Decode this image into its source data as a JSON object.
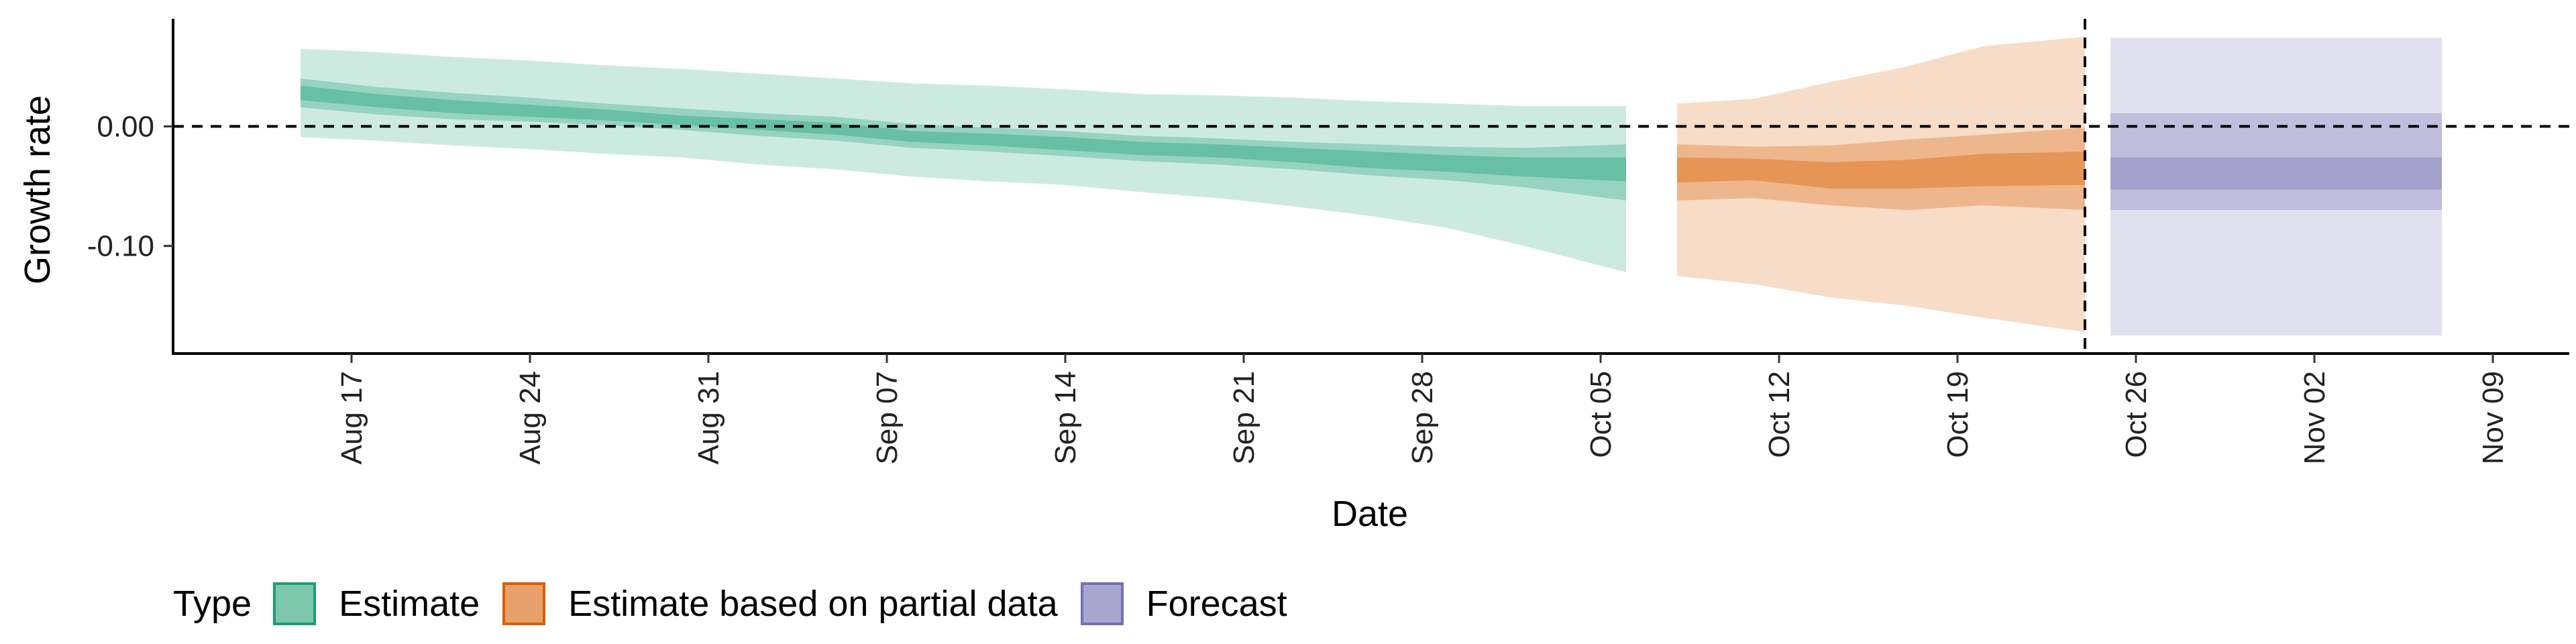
{
  "chart_data": {
    "type": "area",
    "ylabel": "Growth rate",
    "xlabel": "Date",
    "ylim": [
      -0.19,
      0.09
    ],
    "yticks": [
      {
        "value": 0.0,
        "label": "0.00"
      },
      {
        "value": -0.1,
        "label": "-0.10"
      }
    ],
    "xlim": [
      "2020-08-10",
      "2020-11-12"
    ],
    "xticks": [
      {
        "date": "2020-08-17",
        "label": "Aug 17"
      },
      {
        "date": "2020-08-24",
        "label": "Aug 24"
      },
      {
        "date": "2020-08-31",
        "label": "Aug 31"
      },
      {
        "date": "2020-09-07",
        "label": "Sep 07"
      },
      {
        "date": "2020-09-14",
        "label": "Sep 14"
      },
      {
        "date": "2020-09-21",
        "label": "Sep 21"
      },
      {
        "date": "2020-09-28",
        "label": "Sep 28"
      },
      {
        "date": "2020-10-05",
        "label": "Oct 05"
      },
      {
        "date": "2020-10-12",
        "label": "Oct 12"
      },
      {
        "date": "2020-10-19",
        "label": "Oct 19"
      },
      {
        "date": "2020-10-26",
        "label": "Oct 26"
      },
      {
        "date": "2020-11-02",
        "label": "Nov 02"
      },
      {
        "date": "2020-11-09",
        "label": "Nov 09"
      }
    ],
    "reference_lines": [
      {
        "axis": "y",
        "value": 0.0,
        "style": "dashed"
      },
      {
        "axis": "x",
        "value": "2020-10-24",
        "style": "dashed"
      }
    ],
    "legend": {
      "title": "Type",
      "position": "bottom-left",
      "items": [
        {
          "label": "Estimate",
          "fill": "#7dc8ad",
          "border": "#1b9e77"
        },
        {
          "label": "Estimate based on partial data",
          "fill": "#e8a06a",
          "border": "#d95f02"
        },
        {
          "label": "Forecast",
          "fill": "#a9a7d0",
          "border": "#7570b3"
        }
      ]
    },
    "series": [
      {
        "name": "Estimate",
        "color": "#1b9e77",
        "points": [
          {
            "date": "2020-08-15",
            "lo90": -0.009,
            "lo50": 0.016,
            "lo20": 0.022,
            "hi20": 0.034,
            "hi50": 0.04,
            "hi90": 0.065
          },
          {
            "date": "2020-08-18",
            "lo90": -0.012,
            "lo50": 0.01,
            "lo20": 0.016,
            "hi20": 0.027,
            "hi50": 0.033,
            "hi90": 0.062
          },
          {
            "date": "2020-08-21",
            "lo90": -0.016,
            "lo50": 0.006,
            "lo20": 0.011,
            "hi20": 0.022,
            "hi50": 0.028,
            "hi90": 0.058
          },
          {
            "date": "2020-08-24",
            "lo90": -0.019,
            "lo50": 0.004,
            "lo20": 0.008,
            "hi20": 0.018,
            "hi50": 0.024,
            "hi90": 0.055
          },
          {
            "date": "2020-08-27",
            "lo90": -0.023,
            "lo50": 0.001,
            "lo20": 0.005,
            "hi20": 0.014,
            "hi50": 0.019,
            "hi90": 0.051
          },
          {
            "date": "2020-08-30",
            "lo90": -0.026,
            "lo50": -0.003,
            "lo20": 0.001,
            "hi20": 0.009,
            "hi50": 0.015,
            "hi90": 0.048
          },
          {
            "date": "2020-09-02",
            "lo90": -0.032,
            "lo50": -0.008,
            "lo20": -0.003,
            "hi20": 0.006,
            "hi50": 0.011,
            "hi90": 0.044
          },
          {
            "date": "2020-09-05",
            "lo90": -0.036,
            "lo50": -0.012,
            "lo20": -0.007,
            "hi20": 0.003,
            "hi50": 0.008,
            "hi90": 0.04
          },
          {
            "date": "2020-09-08",
            "lo90": -0.042,
            "lo50": -0.018,
            "lo20": -0.013,
            "hi20": -0.004,
            "hi50": 0.002,
            "hi90": 0.036
          },
          {
            "date": "2020-09-11",
            "lo90": -0.046,
            "lo50": -0.021,
            "lo20": -0.016,
            "hi20": -0.006,
            "hi50": -0.001,
            "hi90": 0.034
          },
          {
            "date": "2020-09-14",
            "lo90": -0.049,
            "lo50": -0.025,
            "lo20": -0.02,
            "hi20": -0.009,
            "hi50": -0.004,
            "hi90": 0.031
          },
          {
            "date": "2020-09-17",
            "lo90": -0.055,
            "lo50": -0.029,
            "lo20": -0.024,
            "hi20": -0.013,
            "hi50": -0.008,
            "hi90": 0.027
          },
          {
            "date": "2020-09-20",
            "lo90": -0.06,
            "lo50": -0.032,
            "lo20": -0.026,
            "hi20": -0.015,
            "hi50": -0.01,
            "hi90": 0.026
          },
          {
            "date": "2020-09-23",
            "lo90": -0.067,
            "lo50": -0.036,
            "lo20": -0.03,
            "hi20": -0.018,
            "hi50": -0.013,
            "hi90": 0.024
          },
          {
            "date": "2020-09-26",
            "lo90": -0.075,
            "lo50": -0.041,
            "lo20": -0.035,
            "hi20": -0.021,
            "hi50": -0.015,
            "hi90": 0.021
          },
          {
            "date": "2020-09-29",
            "lo90": -0.085,
            "lo50": -0.045,
            "lo20": -0.038,
            "hi20": -0.024,
            "hi50": -0.017,
            "hi90": 0.019
          },
          {
            "date": "2020-10-02",
            "lo90": -0.1,
            "lo50": -0.051,
            "lo20": -0.042,
            "hi20": -0.026,
            "hi50": -0.018,
            "hi90": 0.017
          },
          {
            "date": "2020-10-06",
            "lo90": -0.122,
            "lo50": -0.062,
            "lo20": -0.046,
            "hi20": -0.026,
            "hi50": -0.015,
            "hi90": 0.017
          }
        ]
      },
      {
        "name": "Estimate based on partial data",
        "color": "#d95f02",
        "points": [
          {
            "date": "2020-10-08",
            "lo90": -0.125,
            "lo50": -0.062,
            "lo20": -0.047,
            "hi20": -0.026,
            "hi50": -0.015,
            "hi90": 0.019
          },
          {
            "date": "2020-10-11",
            "lo90": -0.132,
            "lo50": -0.06,
            "lo20": -0.045,
            "hi20": -0.027,
            "hi50": -0.017,
            "hi90": 0.023
          },
          {
            "date": "2020-10-14",
            "lo90": -0.143,
            "lo50": -0.066,
            "lo20": -0.052,
            "hi20": -0.03,
            "hi50": -0.016,
            "hi90": 0.037
          },
          {
            "date": "2020-10-17",
            "lo90": -0.15,
            "lo50": -0.07,
            "lo20": -0.052,
            "hi20": -0.028,
            "hi50": -0.011,
            "hi90": 0.05
          },
          {
            "date": "2020-10-20",
            "lo90": -0.16,
            "lo50": -0.066,
            "lo20": -0.05,
            "hi20": -0.023,
            "hi50": -0.007,
            "hi90": 0.067
          },
          {
            "date": "2020-10-24",
            "lo90": -0.172,
            "lo50": -0.07,
            "lo20": -0.049,
            "hi20": -0.021,
            "hi50": -0.001,
            "hi90": 0.075
          }
        ]
      },
      {
        "name": "Forecast",
        "color": "#7570b3",
        "points": [
          {
            "date": "2020-10-25",
            "lo90": -0.175,
            "lo50": -0.07,
            "lo20": -0.053,
            "hi20": -0.026,
            "hi50": 0.011,
            "hi90": 0.074
          },
          {
            "date": "2020-11-07",
            "lo90": -0.175,
            "lo50": -0.07,
            "lo20": -0.053,
            "hi20": -0.026,
            "hi50": 0.011,
            "hi90": 0.074
          }
        ]
      }
    ]
  }
}
